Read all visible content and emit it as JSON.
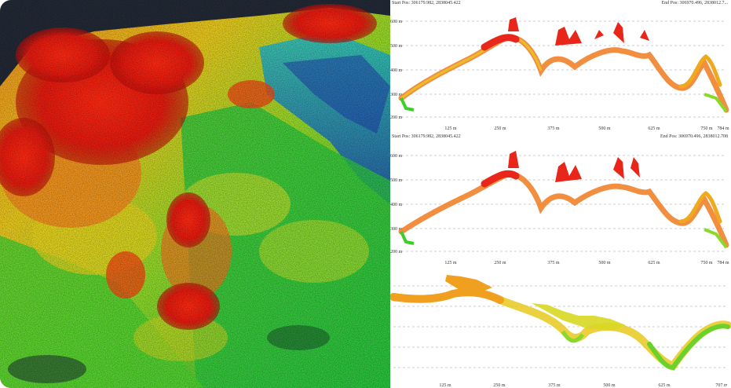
{
  "left_panel": {
    "type": "lidar-point-cloud-3d",
    "colormap": [
      "#1a3a9e",
      "#16b8d8",
      "#22c34a",
      "#c8e02a",
      "#f2d21e",
      "#f08a1e",
      "#e81e12"
    ],
    "background": "#1e2430"
  },
  "profiles": [
    {
      "header_left": "Start Pos: 306179.982, 2838045.422",
      "header_right": "End Pos: 306970.496, 2838012.7...",
      "y_labels": [
        "600 m",
        "500 m",
        "400 m",
        "300 m",
        "200 m"
      ],
      "x_labels": [
        "125 m",
        "250 m",
        "375 m",
        "500 m",
        "625 m",
        "750 m",
        "784 m"
      ]
    },
    {
      "header_left": "Start Pos: 306179.982, 2838045.422",
      "header_right": "End Pos: 306970.496, 2838012.708",
      "y_labels": [
        "600 m",
        "500 m",
        "400 m",
        "300 m",
        "200 m"
      ],
      "x_labels": [
        "125 m",
        "250 m",
        "375 m",
        "500 m",
        "625 m",
        "750 m",
        "784 m"
      ]
    },
    {
      "header_left": "",
      "header_right": "",
      "y_labels": [],
      "x_labels": [
        "125 m",
        "250 m",
        "375 m",
        "500 m",
        "625 m",
        "707 m"
      ]
    }
  ]
}
